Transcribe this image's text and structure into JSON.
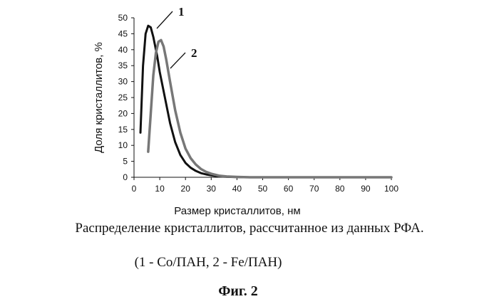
{
  "chart_data": {
    "type": "line",
    "xlabel": "Размер кристаллитов, нм",
    "ylabel": "Доля кристаллитов, %",
    "xlim": [
      0,
      100
    ],
    "ylim": [
      0,
      50
    ],
    "xticks": [
      0,
      10,
      20,
      30,
      40,
      50,
      60,
      70,
      80,
      90,
      100
    ],
    "yticks": [
      0,
      5,
      10,
      15,
      20,
      25,
      30,
      35,
      40,
      45,
      50
    ],
    "grid": false,
    "series": [
      {
        "name": "1",
        "color": "#111111",
        "x": [
          2.5,
          3.5,
          4.5,
          5.5,
          6.5,
          7.5,
          9,
          10,
          12,
          14,
          16,
          18,
          20,
          22,
          24,
          26,
          28,
          30,
          33,
          36,
          40,
          45,
          50,
          60,
          70,
          80,
          90,
          100
        ],
        "y": [
          14,
          35,
          45,
          47.5,
          47,
          44,
          38,
          33,
          25,
          17,
          11,
          7,
          4.5,
          3,
          2,
          1.3,
          0.9,
          0.6,
          0.3,
          0.15,
          0.05,
          0,
          0,
          0,
          0,
          0,
          0,
          0
        ]
      },
      {
        "name": "2",
        "color": "#777777",
        "x": [
          5.5,
          6.5,
          7.5,
          8.5,
          9.5,
          10.5,
          11.5,
          12.5,
          14,
          16,
          18,
          20,
          22,
          24,
          26,
          28,
          30,
          33,
          36,
          40,
          45,
          50,
          60,
          70,
          80,
          90,
          100
        ],
        "y": [
          8,
          20,
          32,
          39,
          42.5,
          43,
          41,
          37,
          30,
          21,
          14,
          9,
          6,
          4,
          2.6,
          1.7,
          1.1,
          0.5,
          0.25,
          0.1,
          0,
          0,
          0,
          0,
          0,
          0,
          0
        ]
      }
    ]
  },
  "caption": "Распределение кристаллитов, рассчитанное из данных РФА.",
  "legend_text": "(1 - Co/ПАН, 2 - Fe/ПАН)",
  "figure_label": "Фиг. 2"
}
